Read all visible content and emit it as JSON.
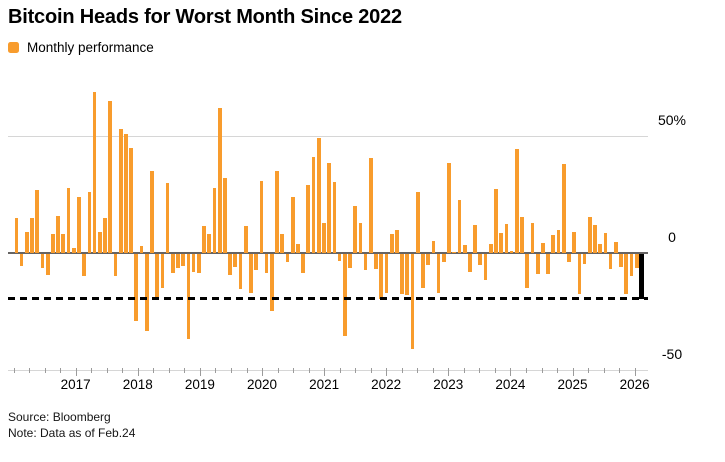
{
  "header": {
    "title": "Bitcoin Heads for Worst Month Since 2022"
  },
  "legend": {
    "label": "Monthly performance"
  },
  "footer": {
    "source": "Source: Bloomberg",
    "note": "Note: Data as of Feb.24"
  },
  "colors": {
    "bar": "#F89C2D",
    "current_bar": "#000000",
    "grid": "#d6d6d6",
    "zero_line": "#666463",
    "dashed_line": "#000000"
  },
  "chart_data": {
    "type": "bar",
    "title": "Bitcoin Heads for Worst Month Since 2022",
    "series_name": "Monthly performance",
    "unit": "percent",
    "ylim": [
      -50,
      70
    ],
    "grid": "horizontal-at-50-and-minus-50",
    "legend_position": "top-left",
    "y_ticks": [
      {
        "label": "50%",
        "value": 50
      },
      {
        "label": "0",
        "value": 0
      },
      {
        "label": "-50",
        "value": -50
      }
    ],
    "x_year_ticks": [
      2017,
      2018,
      2019,
      2020,
      2021,
      2022,
      2023,
      2024,
      2025,
      2026
    ],
    "dashed_reference_line_value": -19.4,
    "current_month_index": 120,
    "months": [
      "2016-02",
      "2016-03",
      "2016-04",
      "2016-05",
      "2016-06",
      "2016-07",
      "2016-08",
      "2016-09",
      "2016-10",
      "2016-11",
      "2016-12",
      "2017-01",
      "2017-02",
      "2017-03",
      "2017-04",
      "2017-05",
      "2017-06",
      "2017-07",
      "2017-08",
      "2017-09",
      "2017-10",
      "2017-11",
      "2017-12",
      "2018-01",
      "2018-02",
      "2018-03",
      "2018-04",
      "2018-05",
      "2018-06",
      "2018-07",
      "2018-08",
      "2018-09",
      "2018-10",
      "2018-11",
      "2018-12",
      "2019-01",
      "2019-02",
      "2019-03",
      "2019-04",
      "2019-05",
      "2019-06",
      "2019-07",
      "2019-08",
      "2019-09",
      "2019-10",
      "2019-11",
      "2019-12",
      "2020-01",
      "2020-02",
      "2020-03",
      "2020-04",
      "2020-05",
      "2020-06",
      "2020-07",
      "2020-08",
      "2020-09",
      "2020-10",
      "2020-11",
      "2020-12",
      "2021-01",
      "2021-02",
      "2021-03",
      "2021-04",
      "2021-05",
      "2021-06",
      "2021-07",
      "2021-08",
      "2021-09",
      "2021-10",
      "2021-11",
      "2021-12",
      "2022-01",
      "2022-02",
      "2022-03",
      "2022-04",
      "2022-05",
      "2022-06",
      "2022-07",
      "2022-08",
      "2022-09",
      "2022-10",
      "2022-11",
      "2022-12",
      "2023-01",
      "2023-02",
      "2023-03",
      "2023-04",
      "2023-05",
      "2023-06",
      "2023-07",
      "2023-08",
      "2023-09",
      "2023-10",
      "2023-11",
      "2023-12",
      "2024-01",
      "2024-02",
      "2024-03",
      "2024-04",
      "2024-05",
      "2024-06",
      "2024-07",
      "2024-08",
      "2024-09",
      "2024-10",
      "2024-11",
      "2024-12",
      "2025-01",
      "2025-02",
      "2025-03",
      "2025-04",
      "2025-05",
      "2025-06",
      "2025-07",
      "2025-08",
      "2025-09",
      "2025-10",
      "2025-11",
      "2025-12",
      "2026-01",
      "2026-02"
    ],
    "values": [
      15,
      -5,
      9,
      15,
      27,
      -6,
      -9,
      8,
      16,
      8,
      28,
      2,
      24,
      -9.5,
      26,
      69,
      9,
      15,
      65,
      -9.5,
      53,
      51,
      45,
      -28.5,
      3,
      -33,
      35,
      -19.5,
      -14.5,
      30,
      -8,
      -6,
      -5,
      -36.5,
      -7.5,
      -8,
      11.5,
      8,
      28,
      62,
      32,
      -9,
      -5.5,
      -15,
      11.5,
      -16.5,
      -7,
      31,
      -8,
      -24.5,
      35,
      8,
      -3.5,
      24,
      4,
      -8,
      29,
      41,
      49,
      13,
      38.5,
      30.5,
      -3,
      -35,
      -6,
      20,
      13,
      -7,
      40.5,
      -6.5,
      -19,
      -16.8,
      8,
      10,
      -17,
      -17.5,
      -40.5,
      26,
      -14.5,
      -4.5,
      5,
      -16.5,
      -3.5,
      38.5,
      0.5,
      22.5,
      3.5,
      -7.5,
      12,
      -4.7,
      -11.3,
      4,
      27.5,
      8.7,
      12.5,
      1,
      44.5,
      15.5,
      -14.7,
      12.7,
      -8.4,
      4.4,
      -8.7,
      7.7,
      10,
      38,
      -3.3,
      9,
      -17,
      -4.4,
      15.2,
      12,
      3.8,
      8.4,
      -6.6,
      4.8,
      -5.6,
      -17,
      -9.5,
      -6,
      -19.4
    ]
  }
}
